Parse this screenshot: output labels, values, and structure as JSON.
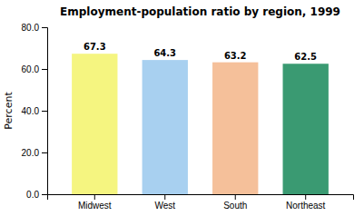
{
  "chart_data": {
    "type": "bar",
    "title": "Employment-population ratio by region, 1999",
    "ylabel": "Percent",
    "categories": [
      "Midwest",
      "West",
      "South",
      "Northeast"
    ],
    "values": [
      67.3,
      64.3,
      63.2,
      62.5
    ],
    "colors": [
      "#f5f580",
      "#a8d0f0",
      "#f5c09a",
      "#3a9a72"
    ],
    "ylim": [
      0.0,
      80.0
    ],
    "yticks": [
      {
        "value": 0.0,
        "label": "0.0"
      },
      {
        "value": 20.0,
        "label": "20.0"
      },
      {
        "value": 40.0,
        "label": "40.0"
      },
      {
        "value": 60.0,
        "label": "60.0"
      },
      {
        "value": 80.0,
        "label": "80.0"
      }
    ],
    "grid": false,
    "data_labels": true
  }
}
